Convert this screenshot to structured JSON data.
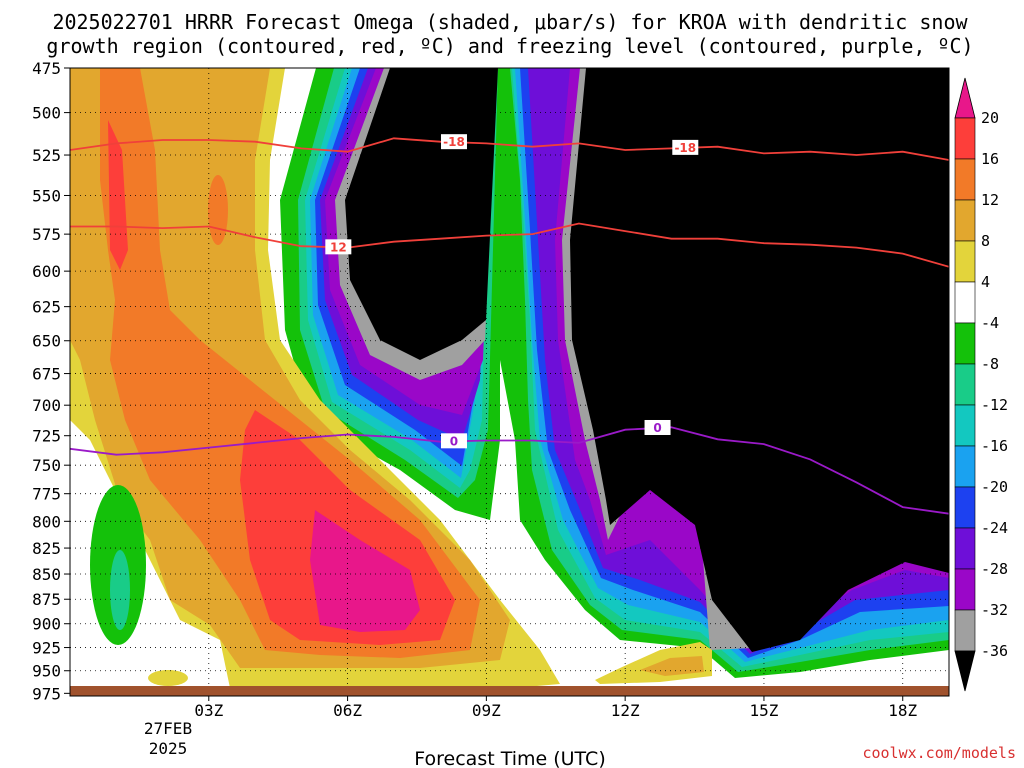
{
  "title_line1": "2025022701 HRRR Forecast Omega (shaded, μbar/s) for KROA with dendritic snow",
  "title_line2": "growth region (contoured, red, ºC) and freezing level (contoured, purple, ºC)",
  "credit": "coolwx.com/models",
  "chart_data": {
    "type": "contour",
    "xlabel": "Forecast Time (UTC)",
    "x_ticks": [
      "03Z",
      "06Z",
      "09Z",
      "12Z",
      "15Z",
      "18Z"
    ],
    "x_tick_hours": [
      3,
      6,
      9,
      12,
      15,
      18
    ],
    "date_label": [
      "27FEB",
      "2025"
    ],
    "xlim": [
      0,
      19
    ],
    "y_ticks": [
      475,
      500,
      525,
      550,
      575,
      600,
      625,
      650,
      675,
      700,
      725,
      750,
      775,
      800,
      825,
      850,
      875,
      900,
      925,
      950,
      975
    ],
    "ylim": [
      978,
      475
    ],
    "y_scale": "log",
    "grid": true,
    "colorbar": {
      "labels": [
        "20",
        "16",
        "12",
        "8",
        "4",
        "-4",
        "-8",
        "-12",
        "-16",
        "-20",
        "-24",
        "-28",
        "-32",
        "-36"
      ],
      "colors": [
        "#e8178a",
        "#fd3e3a",
        "#f27a28",
        "#e2a72e",
        "#e3d43b",
        "#ffffff",
        "#14c10a",
        "#19cc88",
        "#13c8c0",
        "#1aa2f0",
        "#1d41f0",
        "#6e0fd8",
        "#9a07c8",
        "#a0a0a0",
        "#000000"
      ]
    },
    "contours": [
      {
        "name": "-18",
        "color": "#f0403a",
        "hours": [
          0,
          1,
          2,
          3,
          4,
          5,
          6,
          7,
          8,
          9,
          10,
          11,
          12,
          13,
          14,
          15,
          16,
          17,
          18,
          19
        ],
        "pressure": [
          522,
          518,
          516,
          516,
          517,
          521,
          523,
          515,
          517,
          518,
          520,
          518,
          522,
          521,
          520,
          524,
          523,
          525,
          523,
          528
        ]
      },
      {
        "name": "12",
        "color": "#f0403a",
        "hours": [
          0,
          1,
          2,
          3,
          4,
          5,
          6,
          7,
          8,
          9,
          10,
          11,
          12,
          13,
          14,
          15,
          16,
          17,
          18,
          19
        ],
        "pressure": [
          570,
          570,
          571,
          570,
          577,
          583,
          584,
          580,
          578,
          576,
          575,
          568,
          573,
          578,
          578,
          581,
          582,
          584,
          588,
          597
        ]
      },
      {
        "name": "0",
        "color": "#9a1ac8",
        "hours": [
          0,
          1,
          2,
          3,
          4,
          5,
          6,
          7,
          8,
          9,
          10,
          11,
          12,
          13,
          14,
          15,
          16,
          17,
          18,
          19
        ],
        "pressure": [
          736,
          741,
          739,
          735,
          731,
          727,
          724,
          726,
          730,
          729,
          729,
          731,
          720,
          718,
          728,
          732,
          745,
          765,
          787,
          793
        ]
      }
    ],
    "contour_labels": [
      "-18",
      "-18",
      "12",
      "0",
      "0"
    ]
  }
}
